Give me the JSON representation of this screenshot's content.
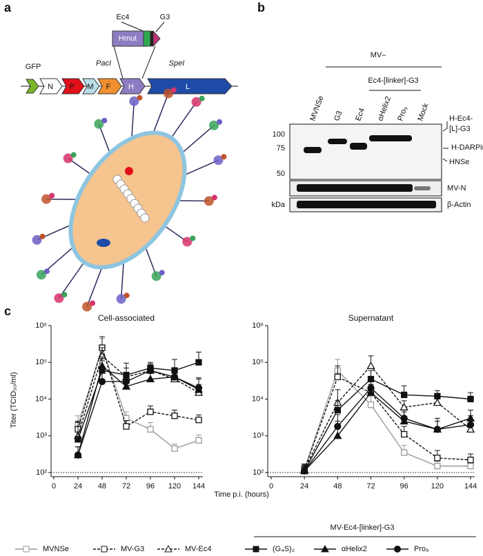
{
  "panel_a": {
    "label": "a",
    "insert": {
      "name": "Hmut",
      "labels": [
        "Ec4",
        "G3"
      ]
    },
    "genome": {
      "genes": [
        "GFP",
        "N",
        "P",
        "M",
        "F",
        "H",
        "L"
      ],
      "sites": [
        "PacI",
        "SpeI"
      ]
    }
  },
  "panel_b": {
    "label": "b",
    "group": "MV–",
    "subgroup": "Ec4-[linker]-G3",
    "lanes": [
      "MVNSe",
      "G3",
      "Ec4",
      "αHelix2",
      "Pro₉",
      "Mock"
    ],
    "markers": [
      100,
      75,
      50
    ],
    "unit": "kDa",
    "bands": [
      "H-Ec4-",
      "[L]-G3",
      "H-DARPin",
      "HNSe",
      "MV-N",
      "β-Actin"
    ]
  },
  "panel_c": {
    "label": "c",
    "y_label": "Titer (TCID₅₀/ml)",
    "x_label": "Time p.i. (hours)",
    "legend_group": "MV-Ec4-[linker]-G3"
  },
  "chart_data": [
    {
      "type": "line",
      "title": "Cell-associated",
      "log_scale": true,
      "x": [
        24,
        48,
        72,
        96,
        120,
        144
      ],
      "xlim": [
        0,
        144
      ],
      "xticks": [
        0,
        24,
        48,
        72,
        96,
        120,
        144
      ],
      "ylim": [
        100,
        1000000
      ],
      "yticks": [
        {
          "value": 100,
          "label": "10²"
        },
        {
          "value": 1000,
          "label": "10³"
        },
        {
          "value": 10000,
          "label": "10⁴"
        },
        {
          "value": 100000,
          "label": "10⁵"
        },
        {
          "value": 1000000,
          "label": "10⁶"
        }
      ],
      "series": [
        {
          "name": "MVNSe",
          "color": "#9a9a9a",
          "marker": "square-open",
          "dash": false,
          "values": [
            2000,
            250000,
            3000,
            1500,
            450,
            750
          ],
          "errors": [
            1500,
            200000,
            1500,
            800,
            150,
            300
          ]
        },
        {
          "name": "MV-G3",
          "color": "#111111",
          "marker": "square-open",
          "dash": true,
          "values": [
            1500,
            250000,
            1800,
            4500,
            3500,
            2700
          ],
          "errors": [
            1000,
            250000,
            800,
            2000,
            1500,
            1000
          ]
        },
        {
          "name": "MV-Ec4",
          "color": "#111111",
          "marker": "triangle-open",
          "dash": true,
          "values": [
            1000,
            150000,
            40000,
            60000,
            35000,
            15000
          ],
          "errors": [
            800,
            100000,
            30000,
            30000,
            20000,
            10000
          ]
        },
        {
          "name": "(G₄S)₂",
          "color": "#111111",
          "marker": "square",
          "dash": false,
          "values": [
            800,
            60000,
            45000,
            70000,
            60000,
            100000
          ],
          "errors": [
            1500,
            50000,
            50000,
            30000,
            60000,
            90000
          ]
        },
        {
          "name": "αHelix2",
          "color": "#111111",
          "marker": "triangle",
          "dash": false,
          "values": [
            300,
            80000,
            22000,
            35000,
            40000,
            18000
          ],
          "errors": [
            200,
            60000,
            15000,
            20000,
            20000,
            20000
          ]
        },
        {
          "name": "Pro₉",
          "color": "#111111",
          "marker": "circle",
          "dash": false,
          "values": [
            300,
            30000,
            30000,
            60000,
            40000,
            20000
          ],
          "errors": [
            200,
            30000,
            20000,
            30000,
            30000,
            15000
          ]
        }
      ]
    },
    {
      "type": "line",
      "title": "Supernatant",
      "log_scale": true,
      "x": [
        24,
        48,
        72,
        96,
        120,
        144
      ],
      "xlim": [
        0,
        144
      ],
      "xticks": [
        0,
        24,
        48,
        72,
        96,
        120,
        144
      ],
      "ylim": [
        100,
        1000000
      ],
      "yticks": [
        {
          "value": 100,
          "label": "10²"
        },
        {
          "value": 1000,
          "label": "10³"
        },
        {
          "value": 10000,
          "label": "10⁴"
        },
        {
          "value": 100000,
          "label": "10⁵"
        },
        {
          "value": 1000000,
          "label": "10⁶"
        }
      ],
      "series": [
        {
          "name": "MVNSe",
          "color": "#9a9a9a",
          "marker": "square-open",
          "dash": false,
          "values": [
            120,
            60000,
            7000,
            350,
            150,
            150
          ],
          "errors": [
            50,
            60000,
            5000,
            200,
            50,
            50
          ]
        },
        {
          "name": "MV-G3",
          "color": "#111111",
          "marker": "square-open",
          "dash": true,
          "values": [
            120,
            40000,
            15000,
            1100,
            250,
            220
          ],
          "errors": [
            50,
            40000,
            10000,
            700,
            150,
            100
          ]
        },
        {
          "name": "MV-Ec4",
          "color": "#111111",
          "marker": "triangle-open",
          "dash": true,
          "values": [
            120,
            8000,
            80000,
            6000,
            8000,
            1500
          ],
          "errors": [
            50,
            10000,
            70000,
            3000,
            5000,
            1000
          ]
        },
        {
          "name": "(G₄S)₂",
          "color": "#111111",
          "marker": "square",
          "dash": false,
          "values": [
            110,
            5000,
            35000,
            13000,
            12000,
            10000
          ],
          "errors": [
            50,
            4000,
            25000,
            10000,
            5000,
            5000
          ]
        },
        {
          "name": "αHelix2",
          "color": "#111111",
          "marker": "triangle",
          "dash": false,
          "values": [
            110,
            1000,
            15000,
            2500,
            1500,
            3000
          ],
          "errors": [
            40,
            1500,
            10000,
            2000,
            1000,
            2000
          ]
        },
        {
          "name": "Pro₉",
          "color": "#111111",
          "marker": "circle",
          "dash": false,
          "values": [
            110,
            1800,
            20000,
            3000,
            1500,
            2000
          ],
          "errors": [
            40,
            2000,
            15000,
            2000,
            1500,
            1500
          ]
        }
      ]
    }
  ]
}
